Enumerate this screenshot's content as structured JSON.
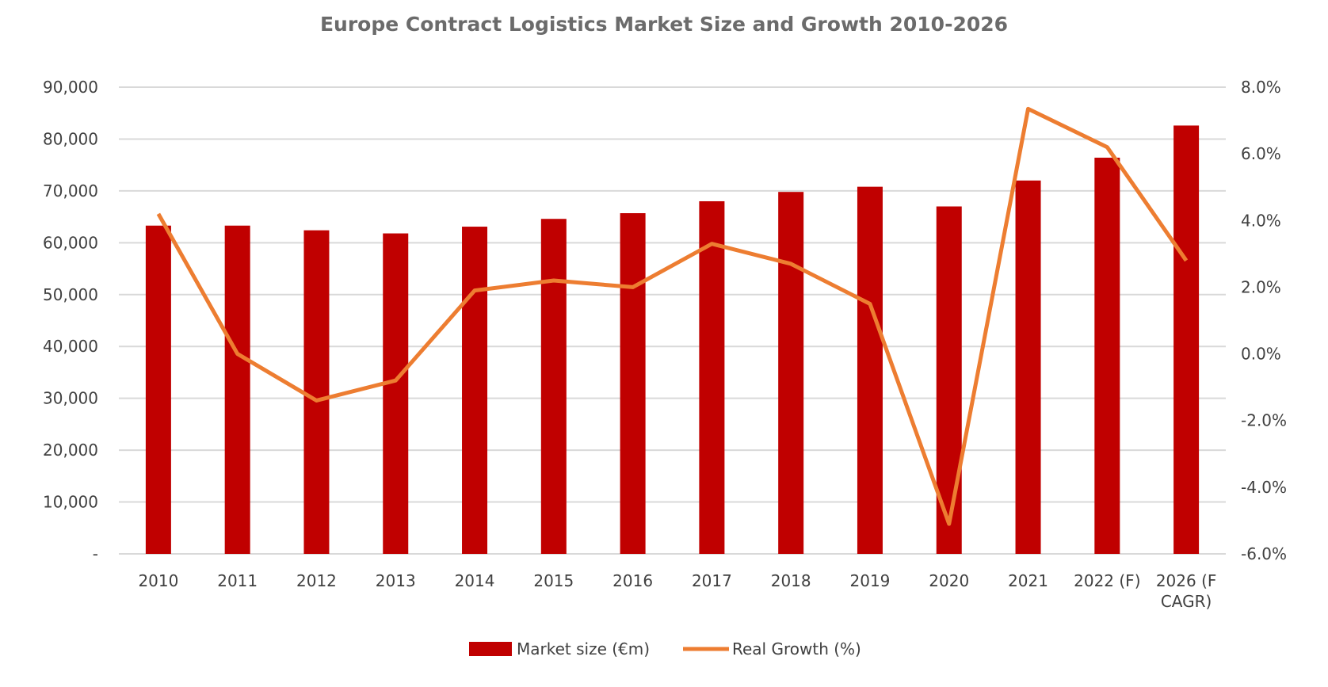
{
  "chart_data": {
    "type": "bar+line",
    "title": "Europe Contract Logistics Market Size and Growth 2010-2026",
    "categories": [
      "2010",
      "2011",
      "2012",
      "2013",
      "2014",
      "2015",
      "2016",
      "2017",
      "2018",
      "2019",
      "2020",
      "2021",
      "2022 (F)",
      "2026 (F CAGR)"
    ],
    "category_labels": [
      [
        "2010"
      ],
      [
        "2011"
      ],
      [
        "2012"
      ],
      [
        "2013"
      ],
      [
        "2014"
      ],
      [
        "2015"
      ],
      [
        "2016"
      ],
      [
        "2017"
      ],
      [
        "2018"
      ],
      [
        "2019"
      ],
      [
        "2020"
      ],
      [
        "2021"
      ],
      [
        "2022 (F)"
      ],
      [
        "2026 (F",
        "CAGR)"
      ]
    ],
    "series": [
      {
        "name": "Market size (€m)",
        "type": "bar",
        "axis": "left",
        "color": "#c00000",
        "values": [
          63300,
          63300,
          62400,
          61800,
          63100,
          64600,
          65700,
          68000,
          69800,
          70800,
          67000,
          72000,
          76400,
          82600
        ]
      },
      {
        "name": "Real Growth (%)",
        "type": "line",
        "axis": "right",
        "color": "#ed7d31",
        "values": [
          4.2,
          0.0,
          -1.4,
          -0.8,
          1.9,
          2.2,
          2.0,
          3.3,
          2.7,
          1.5,
          -5.1,
          7.35,
          6.2,
          2.8
        ]
      }
    ],
    "y_left": {
      "min": 0,
      "max": 90000,
      "step": 10000,
      "tick_labels": [
        "-",
        "10,000",
        "20,000",
        "30,000",
        "40,000",
        "50,000",
        "60,000",
        "70,000",
        "80,000",
        "90,000"
      ]
    },
    "y_right": {
      "min": -6,
      "max": 8,
      "step": 2,
      "tick_labels": [
        "-6.0%",
        "-4.0%",
        "-2.0%",
        "0.0%",
        "2.0%",
        "4.0%",
        "6.0%",
        "8.0%"
      ]
    },
    "grid": true,
    "legend_position": "bottom"
  }
}
